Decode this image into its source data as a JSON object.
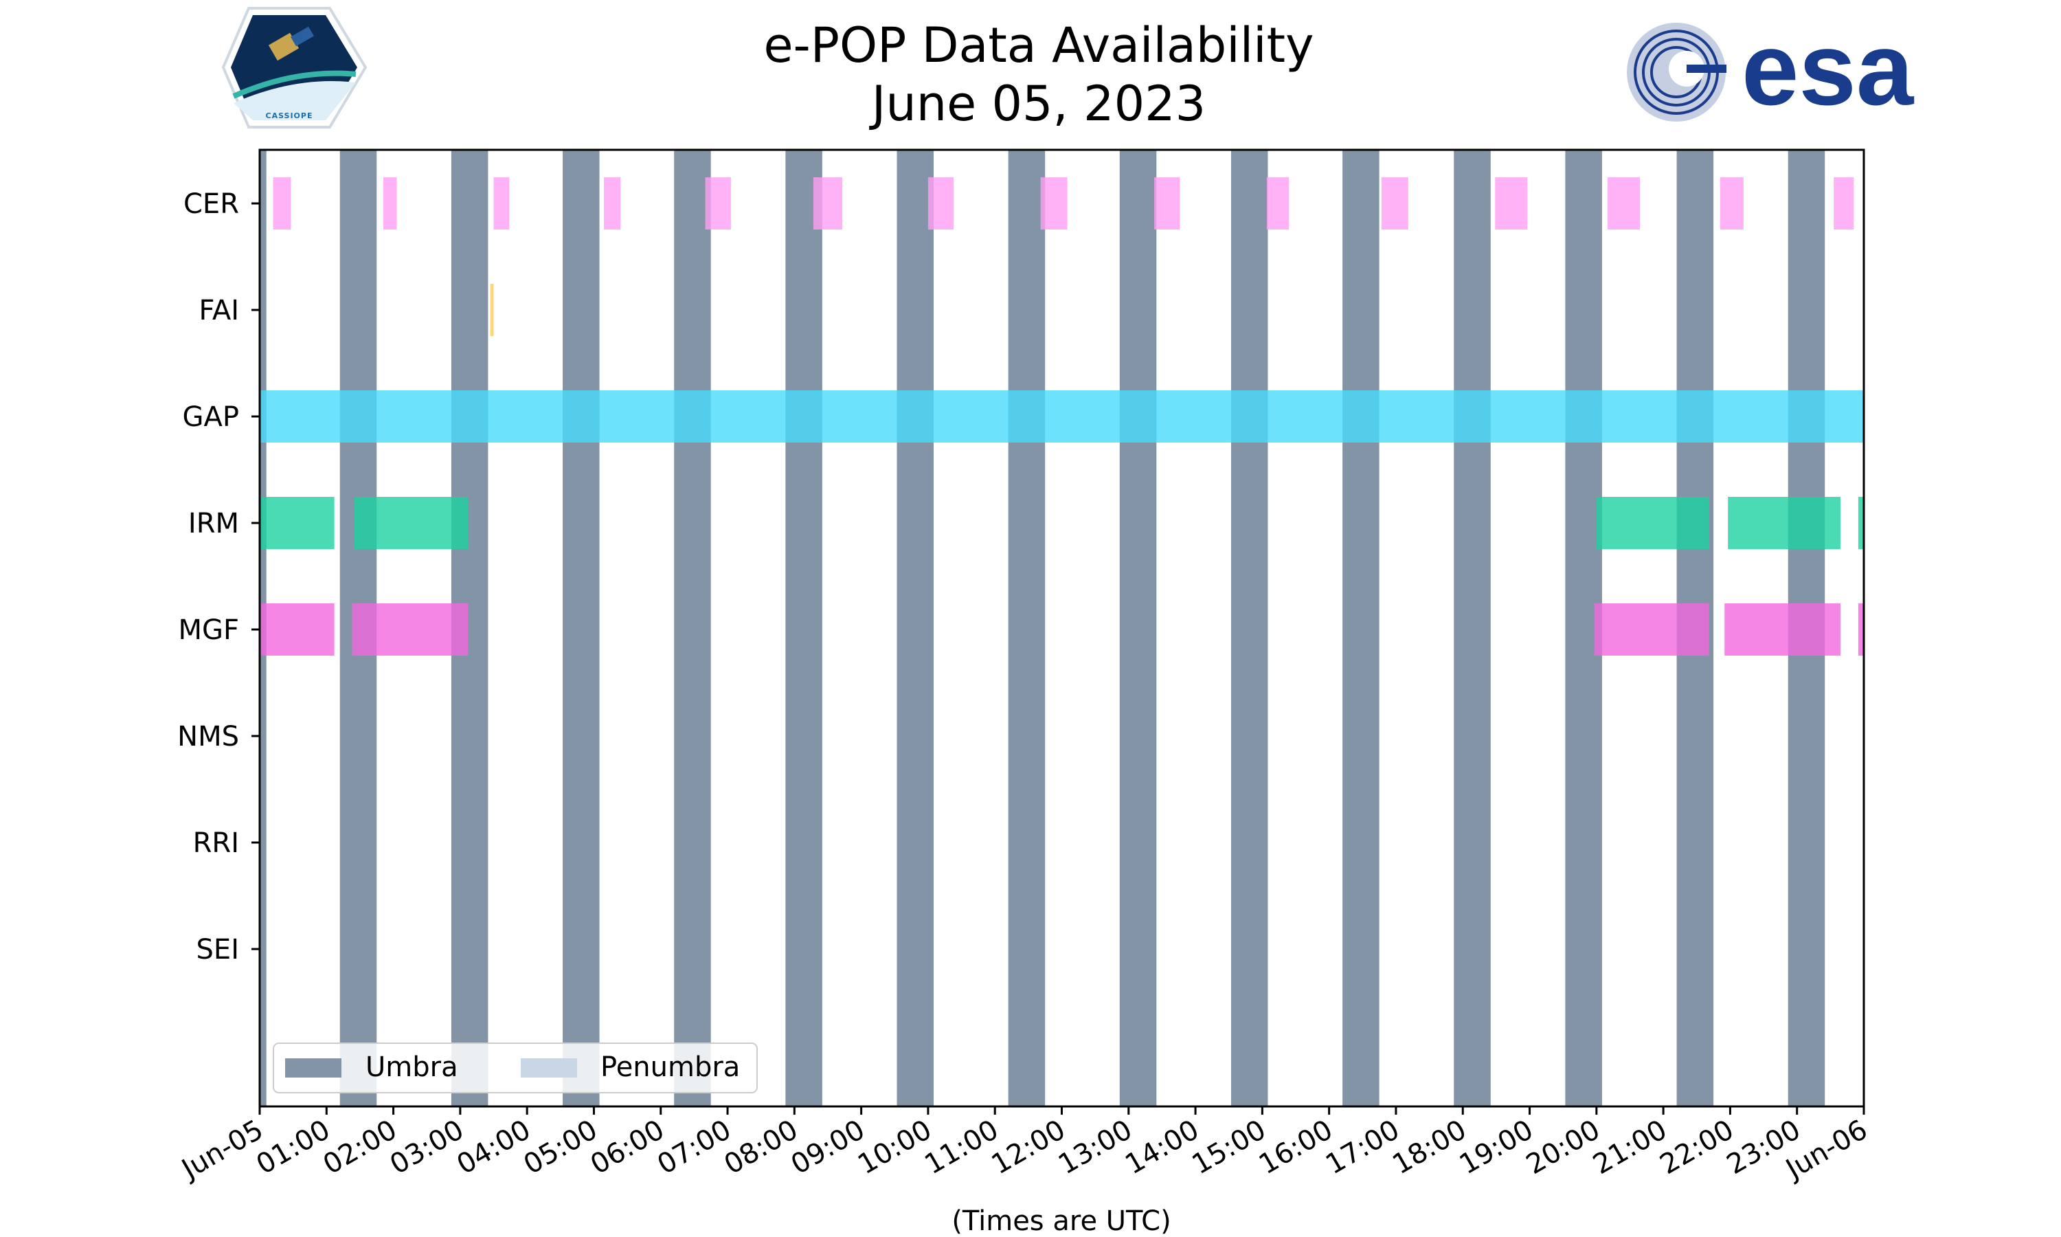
{
  "header": {
    "title_line1": "e-POP Data Availability",
    "title_line2": "June 05, 2023"
  },
  "logos": {
    "left": {
      "name": "cassiope-logo",
      "text": "CASSIOPE"
    },
    "right": {
      "name": "esa-logo",
      "text": "esa"
    }
  },
  "colors": {
    "umbra": "#8394a6",
    "penumbra": "#c9d6e6",
    "CER": "#ff9ff3",
    "FAI": "#feca57",
    "GAP": "#48dbfb",
    "IRM": "#1dd1a1",
    "MGF": "#f368e0",
    "frame": "#000000"
  },
  "chart_data": {
    "type": "timeline",
    "title": "e-POP Data Availability\nJune 05, 2023",
    "xlabel": "(Times are UTC)",
    "x_range": [
      "2023-06-05 00:00",
      "2023-06-06 00:00"
    ],
    "x_tick_labels": [
      "Jun-05",
      "01:00",
      "02:00",
      "03:00",
      "04:00",
      "05:00",
      "06:00",
      "07:00",
      "08:00",
      "09:00",
      "10:00",
      "11:00",
      "12:00",
      "13:00",
      "14:00",
      "15:00",
      "16:00",
      "17:00",
      "18:00",
      "19:00",
      "20:00",
      "21:00",
      "22:00",
      "23:00",
      "Jun-06"
    ],
    "instruments": [
      "CER",
      "FAI",
      "GAP",
      "IRM",
      "MGF",
      "NMS",
      "RRI",
      "SEI"
    ],
    "umbra": [
      [
        "2023-06-05 00:00",
        "2023-06-05 00:06"
      ],
      [
        "2023-06-05 01:12",
        "2023-06-05 01:45"
      ],
      [
        "2023-06-05 02:52",
        "2023-06-05 03:25"
      ],
      [
        "2023-06-05 04:32",
        "2023-06-05 05:05"
      ],
      [
        "2023-06-05 06:12",
        "2023-06-05 06:45"
      ],
      [
        "2023-06-05 07:52",
        "2023-06-05 08:25"
      ],
      [
        "2023-06-05 09:32",
        "2023-06-05 10:05"
      ],
      [
        "2023-06-05 11:12",
        "2023-06-05 11:45"
      ],
      [
        "2023-06-05 12:52",
        "2023-06-05 13:25"
      ],
      [
        "2023-06-05 14:32",
        "2023-06-05 15:05"
      ],
      [
        "2023-06-05 16:12",
        "2023-06-05 16:45"
      ],
      [
        "2023-06-05 17:52",
        "2023-06-05 18:25"
      ],
      [
        "2023-06-05 19:32",
        "2023-06-05 20:05"
      ],
      [
        "2023-06-05 21:12",
        "2023-06-05 21:45"
      ],
      [
        "2023-06-05 22:52",
        "2023-06-05 23:25"
      ]
    ],
    "penumbra": [],
    "series": [
      {
        "name": "CER",
        "intervals": [
          [
            "2023-06-05 00:12",
            "2023-06-05 00:28"
          ],
          [
            "2023-06-05 01:51",
            "2023-06-05 02:03"
          ],
          [
            "2023-06-05 03:30",
            "2023-06-05 03:44"
          ],
          [
            "2023-06-05 05:09",
            "2023-06-05 05:24"
          ],
          [
            "2023-06-05 06:40",
            "2023-06-05 07:03"
          ],
          [
            "2023-06-05 08:17",
            "2023-06-05 08:43"
          ],
          [
            "2023-06-05 10:00",
            "2023-06-05 10:23"
          ],
          [
            "2023-06-05 11:41",
            "2023-06-05 12:05"
          ],
          [
            "2023-06-05 13:23",
            "2023-06-05 13:46"
          ],
          [
            "2023-06-05 15:04",
            "2023-06-05 15:24"
          ],
          [
            "2023-06-05 16:47",
            "2023-06-05 17:11"
          ],
          [
            "2023-06-05 18:29",
            "2023-06-05 18:58"
          ],
          [
            "2023-06-05 20:10",
            "2023-06-05 20:39"
          ],
          [
            "2023-06-05 21:51",
            "2023-06-05 22:12"
          ],
          [
            "2023-06-05 23:33",
            "2023-06-05 23:51"
          ]
        ]
      },
      {
        "name": "FAI",
        "intervals": [
          [
            "2023-06-05 03:27",
            "2023-06-05 03:30"
          ]
        ]
      },
      {
        "name": "GAP",
        "intervals": [
          [
            "2023-06-05 00:00",
            "2023-06-06 00:00"
          ]
        ]
      },
      {
        "name": "IRM",
        "intervals": [
          [
            "2023-06-05 00:00",
            "2023-06-05 01:07"
          ],
          [
            "2023-06-05 01:25",
            "2023-06-05 03:07"
          ],
          [
            "2023-06-05 20:00",
            "2023-06-05 21:41"
          ],
          [
            "2023-06-05 21:58",
            "2023-06-05 23:39"
          ],
          [
            "2023-06-05 23:55",
            "2023-06-06 00:00"
          ]
        ]
      },
      {
        "name": "MGF",
        "intervals": [
          [
            "2023-06-05 00:00",
            "2023-06-05 01:07"
          ],
          [
            "2023-06-05 01:23",
            "2023-06-05 03:07"
          ],
          [
            "2023-06-05 19:58",
            "2023-06-05 21:41"
          ],
          [
            "2023-06-05 21:55",
            "2023-06-05 23:39"
          ],
          [
            "2023-06-05 23:55",
            "2023-06-06 00:00"
          ]
        ]
      },
      {
        "name": "NMS",
        "intervals": []
      },
      {
        "name": "RRI",
        "intervals": []
      },
      {
        "name": "SEI",
        "intervals": []
      }
    ],
    "legend": {
      "location": "lower-left",
      "entries": [
        {
          "label": "Umbra",
          "color_key": "umbra"
        },
        {
          "label": "Penumbra",
          "color_key": "penumbra"
        }
      ]
    },
    "grid": false
  }
}
